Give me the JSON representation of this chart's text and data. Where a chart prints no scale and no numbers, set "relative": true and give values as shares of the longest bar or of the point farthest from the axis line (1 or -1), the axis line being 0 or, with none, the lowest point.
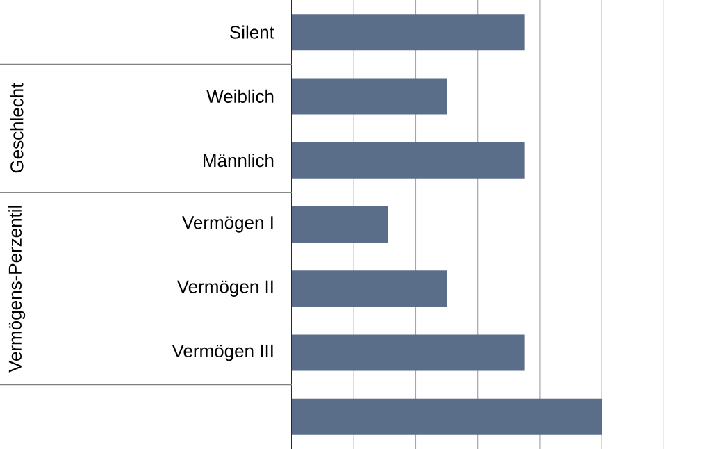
{
  "chart_data": {
    "type": "bar",
    "orientation": "horizontal",
    "relative": true,
    "grid": "x",
    "color": "#5a6e89",
    "categories": [
      "Silent",
      "Weiblich",
      "Männlich",
      "Vermögen I",
      "Vermögen II",
      "Vermögen III",
      null
    ],
    "values": [
      0.75,
      0.5,
      0.75,
      0.31,
      0.5,
      0.75,
      1
    ],
    "annotations": [
      "Geschlecht",
      "Vermögens-Perzentil"
    ]
  }
}
